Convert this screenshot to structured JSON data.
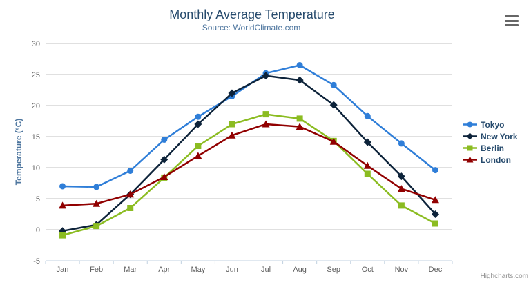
{
  "chart_data": {
    "type": "line",
    "title": "Monthly Average Temperature",
    "subtitle": "Source: WorldClimate.com",
    "xlabel": "",
    "ylabel": "Temperature (°C)",
    "ylim": [
      -5,
      30
    ],
    "tick_interval": 5,
    "grid": true,
    "legend_position": "right-middle",
    "categories": [
      "Jan",
      "Feb",
      "Mar",
      "Apr",
      "May",
      "Jun",
      "Jul",
      "Aug",
      "Sep",
      "Oct",
      "Nov",
      "Dec"
    ],
    "series": [
      {
        "name": "Tokyo",
        "color": "#2f7ed8",
        "marker": "circle",
        "values": [
          7.0,
          6.9,
          9.5,
          14.5,
          18.2,
          21.5,
          25.2,
          26.5,
          23.3,
          18.3,
          13.9,
          9.6
        ]
      },
      {
        "name": "New York",
        "color": "#0d233a",
        "marker": "diamond",
        "values": [
          -0.2,
          0.8,
          5.7,
          11.3,
          17.0,
          22.0,
          24.8,
          24.1,
          20.1,
          14.1,
          8.6,
          2.5
        ]
      },
      {
        "name": "Berlin",
        "color": "#8bbc21",
        "marker": "square",
        "values": [
          -0.9,
          0.6,
          3.5,
          8.4,
          13.5,
          17.0,
          18.6,
          17.9,
          14.3,
          9.0,
          3.9,
          1.0
        ]
      },
      {
        "name": "London",
        "color": "#910000",
        "marker": "triangle",
        "values": [
          3.9,
          4.2,
          5.7,
          8.5,
          11.9,
          15.2,
          17.0,
          16.6,
          14.2,
          10.3,
          6.6,
          4.8
        ]
      }
    ]
  },
  "colors": {
    "title": "#274b6d",
    "subtitle": "#4d759e",
    "y_title": "#4d759e",
    "axis_label": "#606060",
    "grid": "#c0c0c0",
    "axis_line": "#c0d0e0",
    "legend_text": "#274b6d",
    "credits": "#909090"
  },
  "menu": {
    "icon": "hamburger-icon"
  },
  "credits": "Highcharts.com"
}
